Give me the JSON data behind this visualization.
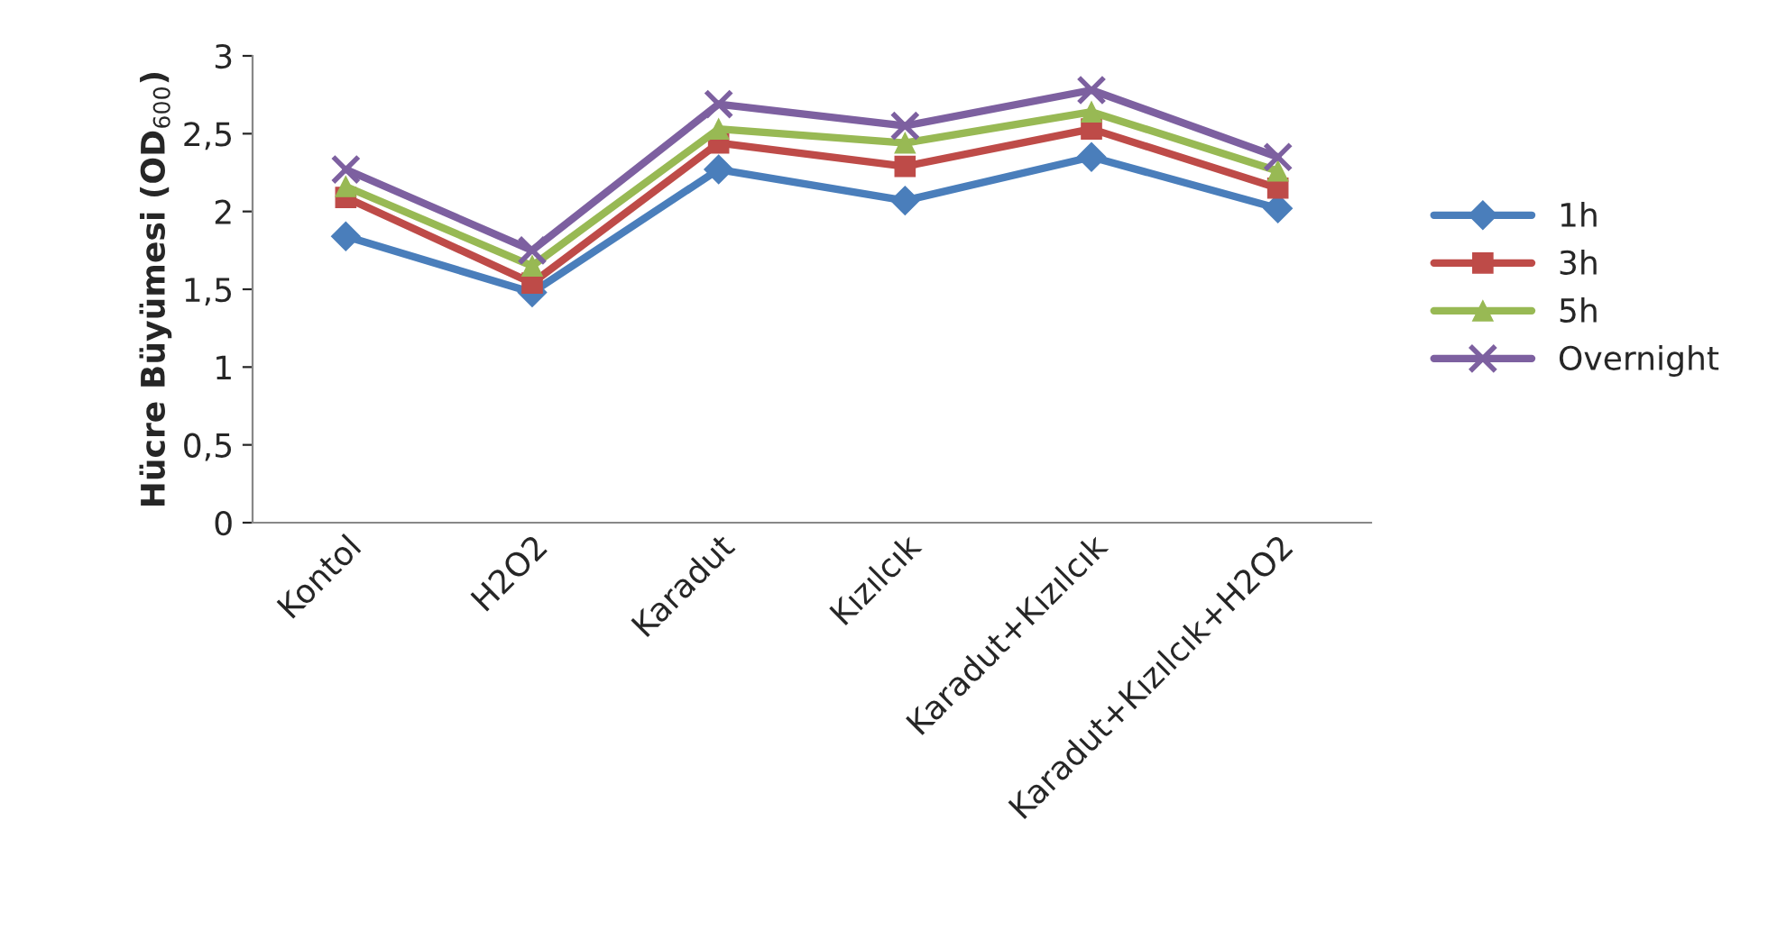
{
  "chart_data": {
    "type": "line",
    "ylabel": "Hücre Büyümesi (OD$_{600}$)",
    "categories": [
      "Kontol",
      "H2O2",
      "Karadut",
      "Kızılcık",
      "Karadut+Kızılcık",
      "Karadut+Kızılcık+H2O2"
    ],
    "series": [
      {
        "name": "1h",
        "color": "#4a7ebb",
        "marker": "diamond",
        "values": [
          1.84,
          1.48,
          2.27,
          2.07,
          2.35,
          2.02
        ]
      },
      {
        "name": "3h",
        "color": "#be4b48",
        "marker": "square",
        "values": [
          2.09,
          1.54,
          2.44,
          2.29,
          2.53,
          2.15
        ]
      },
      {
        "name": "5h",
        "color": "#98b954",
        "marker": "triangle",
        "values": [
          2.16,
          1.65,
          2.53,
          2.44,
          2.64,
          2.26
        ]
      },
      {
        "name": "Overnight",
        "color": "#7d60a0",
        "marker": "cross",
        "values": [
          2.27,
          1.75,
          2.69,
          2.55,
          2.78,
          2.35
        ]
      }
    ],
    "ylim": [
      0,
      3
    ],
    "yticks": [
      0,
      {
        "value": 0.5,
        "label": "0,5"
      },
      1,
      {
        "value": 1.5,
        "label": "1,5"
      },
      2,
      {
        "value": 2.5,
        "label": "2,5"
      },
      3
    ],
    "grid": false,
    "legend": "right"
  }
}
